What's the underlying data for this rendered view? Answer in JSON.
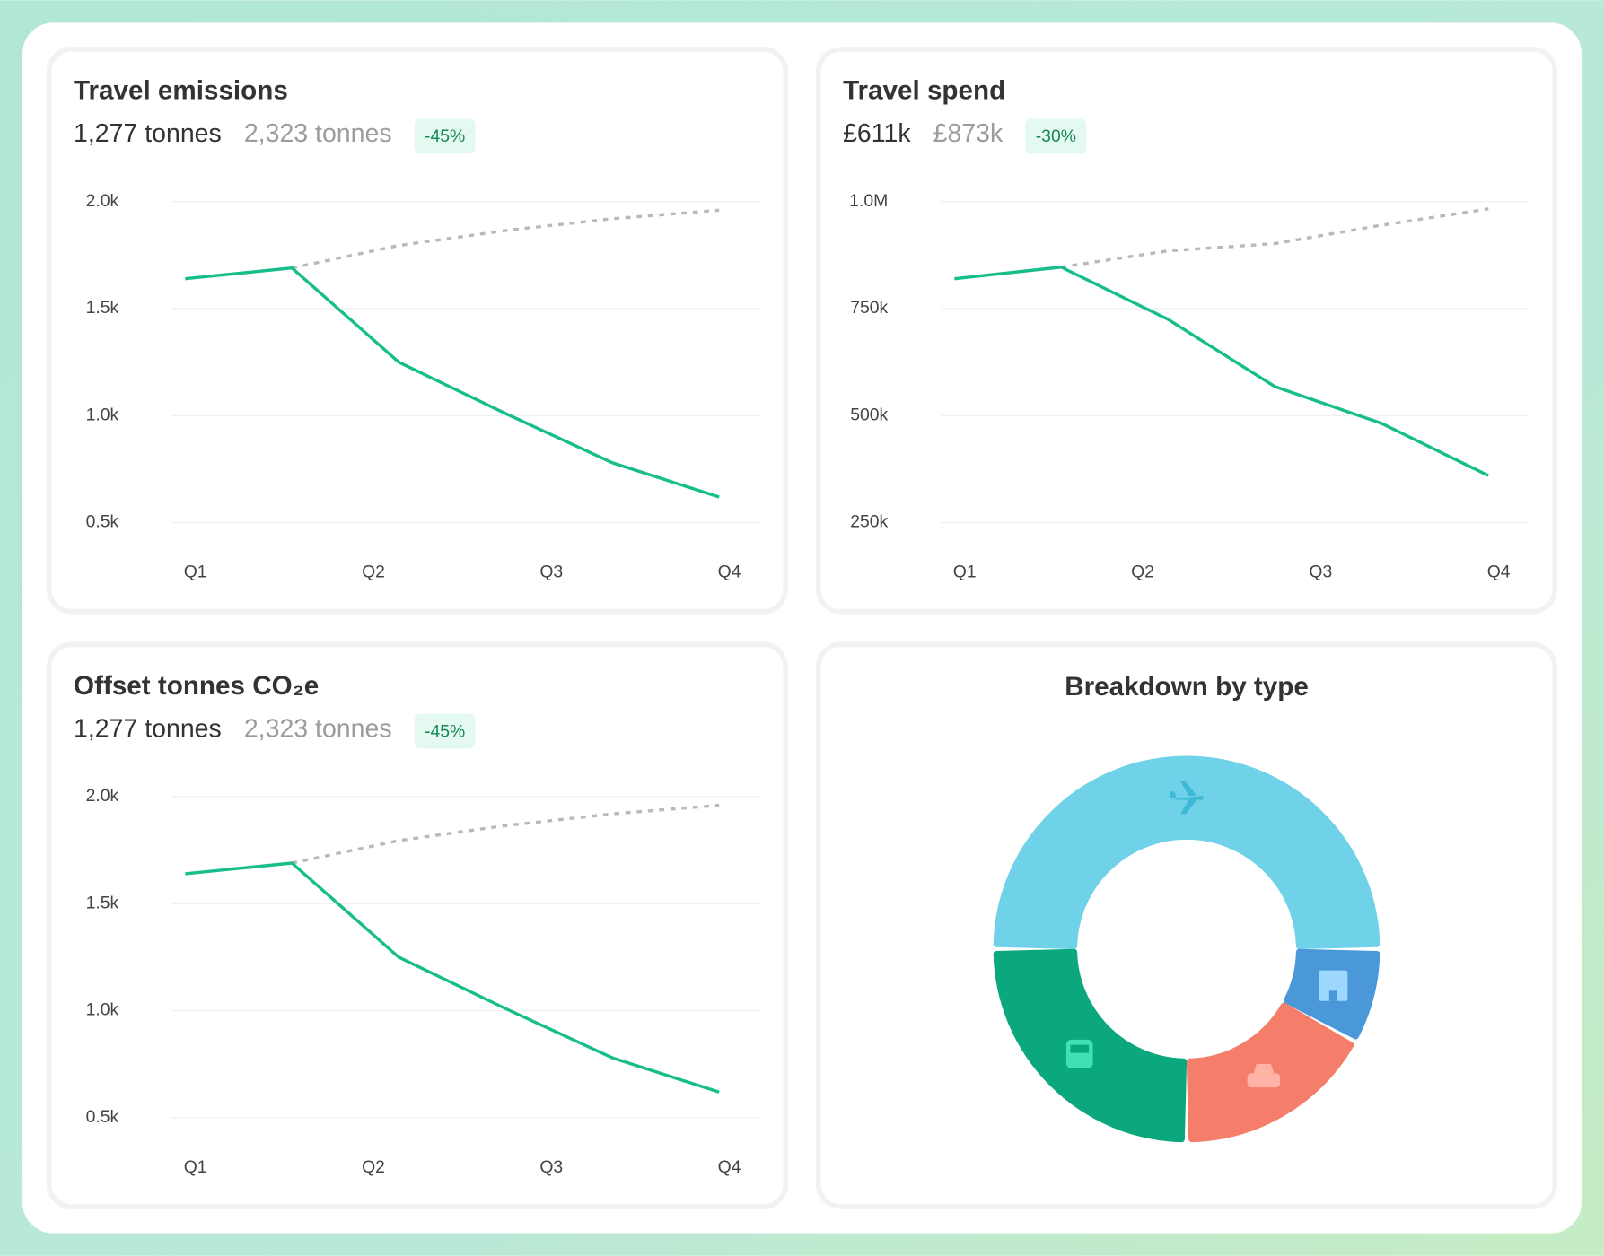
{
  "chart_data": [
    {
      "type": "line",
      "title": "Travel emissions",
      "subtitle": "1,277 tonnes",
      "comparison": "2,323 tonnes",
      "badge": "-45%",
      "x": [
        1,
        1.6,
        2.2,
        2.8,
        3.4,
        4
      ],
      "xlim": [
        1,
        4
      ],
      "xticks": [
        {
          "value": 1,
          "label": "Q1"
        },
        {
          "value": 2,
          "label": "Q2"
        },
        {
          "value": 3,
          "label": "Q3"
        },
        {
          "value": 4,
          "label": "Q4"
        }
      ],
      "ylim": [
        500,
        2000
      ],
      "yticks": [
        {
          "value": 2000,
          "label": "2.0k"
        },
        {
          "value": 1500,
          "label": "1.5k"
        },
        {
          "value": 1000,
          "label": "1.0k"
        },
        {
          "value": 500,
          "label": "0.5k"
        }
      ],
      "grid": true,
      "series": [
        {
          "color": "#b9b9b9",
          "dashed": true,
          "values": [
            null,
            1690,
            1795,
            1865,
            1920,
            1960
          ]
        },
        {
          "color": "#17be8c",
          "values": [
            1640,
            1690,
            1250,
            1010,
            780,
            620
          ]
        }
      ]
    },
    {
      "type": "line",
      "title": "Travel spend",
      "subtitle": "£611k",
      "comparison": "£873k",
      "badge": "-30%",
      "x": [
        1,
        1.6,
        2.2,
        2.8,
        3.4,
        4
      ],
      "xlim": [
        1,
        4
      ],
      "xticks": [
        {
          "value": 1,
          "label": "Q1"
        },
        {
          "value": 2,
          "label": "Q2"
        },
        {
          "value": 3,
          "label": "Q3"
        },
        {
          "value": 4,
          "label": "Q4"
        }
      ],
      "ylim": [
        250000,
        1000000
      ],
      "yticks": [
        {
          "value": 1000000,
          "label": "1.0M"
        },
        {
          "value": 750000,
          "label": "750k"
        },
        {
          "value": 500000,
          "label": "500k"
        },
        {
          "value": 250000,
          "label": "250k"
        }
      ],
      "grid": true,
      "series": [
        {
          "color": "#b9b9b9",
          "dashed": true,
          "values": [
            null,
            847000,
            885000,
            902000,
            945000,
            983000
          ]
        },
        {
          "color": "#17be8c",
          "values": [
            820000,
            847000,
            725000,
            568000,
            482000,
            360000
          ]
        }
      ]
    },
    {
      "type": "line",
      "title": "Offset tonnes CO₂e",
      "subtitle": "1,277 tonnes",
      "comparison": "2,323 tonnes",
      "badge": "-45%",
      "x": [
        1,
        1.6,
        2.2,
        2.8,
        3.4,
        4
      ],
      "xlim": [
        1,
        4
      ],
      "xticks": [
        {
          "value": 1,
          "label": "Q1"
        },
        {
          "value": 2,
          "label": "Q2"
        },
        {
          "value": 3,
          "label": "Q3"
        },
        {
          "value": 4,
          "label": "Q4"
        }
      ],
      "ylim": [
        500,
        2000
      ],
      "yticks": [
        {
          "value": 2000,
          "label": "2.0k"
        },
        {
          "value": 1500,
          "label": "1.5k"
        },
        {
          "value": 1000,
          "label": "1.0k"
        },
        {
          "value": 500,
          "label": "0.5k"
        }
      ],
      "grid": true,
      "series": [
        {
          "color": "#b9b9b9",
          "dashed": true,
          "values": [
            null,
            1690,
            1795,
            1865,
            1920,
            1960
          ]
        },
        {
          "color": "#17be8c",
          "values": [
            1640,
            1690,
            1250,
            1010,
            780,
            620
          ]
        }
      ]
    },
    {
      "type": "donut",
      "title": "Breakdown by type",
      "values": [
        50,
        8,
        17,
        25
      ],
      "colors": [
        "#6fd2e8",
        "#4a98d8",
        "#f47e6a",
        "#0aa87c"
      ]
    }
  ]
}
